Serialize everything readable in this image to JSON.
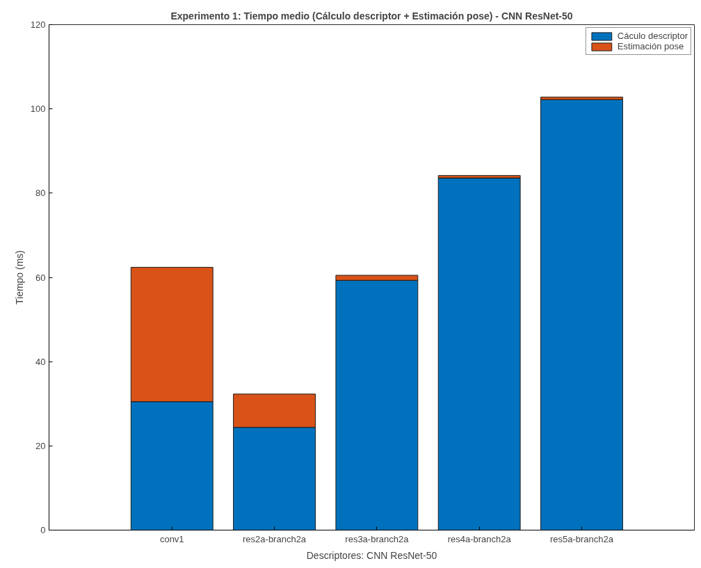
{
  "chart_data": {
    "type": "bar",
    "title": "Experimento 1: Tiempo medio (Cálculo descriptor + Estimación pose) - CNN ResNet-50",
    "xlabel": "Descriptores: CNN ResNet-50",
    "ylabel": "Tiempo (ms)",
    "categories": [
      "conv1",
      "res2a-branch2a",
      "res3a-branch2a",
      "res4a-branch2a",
      "res5a-branch2a"
    ],
    "stacked": true,
    "series": [
      {
        "name": "Cáculo descriptor",
        "color": "#0072bd",
        "values": [
          30.5,
          24.4,
          59.3,
          83.6,
          102.2
        ]
      },
      {
        "name": "Estimación pose",
        "color": "#d95319",
        "values": [
          31.9,
          7.9,
          1.2,
          0.6,
          0.6
        ]
      }
    ],
    "ylim": [
      0,
      120
    ],
    "yticks": [
      0,
      20,
      40,
      60,
      80,
      100,
      120
    ],
    "grid": false,
    "legend": "top right"
  }
}
